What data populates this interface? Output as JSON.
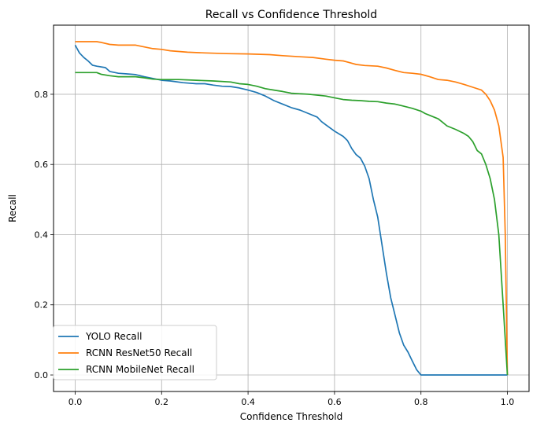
{
  "chart_data": {
    "type": "line",
    "title": "Recall vs Confidence Threshold",
    "xlabel": "Confidence Threshold",
    "ylabel": "Recall",
    "xlim": [
      -0.05,
      1.05
    ],
    "ylim": [
      -0.047,
      0.997
    ],
    "xticks": [
      0.0,
      0.2,
      0.4,
      0.6,
      0.8,
      1.0
    ],
    "xtick_labels": [
      "0.0",
      "0.2",
      "0.4",
      "0.6",
      "0.8",
      "1.0"
    ],
    "yticks": [
      0.0,
      0.2,
      0.4,
      0.6,
      0.8
    ],
    "ytick_labels": [
      "0.0",
      "0.2",
      "0.4",
      "0.6",
      "0.8"
    ],
    "grid": true,
    "legend_position": "lower-left",
    "series": [
      {
        "name": "YOLO Recall",
        "color": "#1f77b4",
        "points": [
          [
            0.0,
            0.94
          ],
          [
            0.01,
            0.918
          ],
          [
            0.02,
            0.905
          ],
          [
            0.03,
            0.895
          ],
          [
            0.04,
            0.883
          ],
          [
            0.05,
            0.88
          ],
          [
            0.07,
            0.876
          ],
          [
            0.08,
            0.865
          ],
          [
            0.1,
            0.86
          ],
          [
            0.12,
            0.858
          ],
          [
            0.14,
            0.856
          ],
          [
            0.16,
            0.85
          ],
          [
            0.18,
            0.845
          ],
          [
            0.2,
            0.84
          ],
          [
            0.22,
            0.838
          ],
          [
            0.25,
            0.833
          ],
          [
            0.28,
            0.83
          ],
          [
            0.3,
            0.83
          ],
          [
            0.32,
            0.826
          ],
          [
            0.34,
            0.823
          ],
          [
            0.36,
            0.822
          ],
          [
            0.38,
            0.818
          ],
          [
            0.4,
            0.812
          ],
          [
            0.42,
            0.805
          ],
          [
            0.44,
            0.795
          ],
          [
            0.46,
            0.782
          ],
          [
            0.48,
            0.772
          ],
          [
            0.5,
            0.762
          ],
          [
            0.52,
            0.755
          ],
          [
            0.54,
            0.745
          ],
          [
            0.56,
            0.735
          ],
          [
            0.57,
            0.722
          ],
          [
            0.58,
            0.713
          ],
          [
            0.6,
            0.695
          ],
          [
            0.62,
            0.68
          ],
          [
            0.63,
            0.668
          ],
          [
            0.64,
            0.645
          ],
          [
            0.65,
            0.628
          ],
          [
            0.66,
            0.618
          ],
          [
            0.67,
            0.595
          ],
          [
            0.68,
            0.56
          ],
          [
            0.69,
            0.5
          ],
          [
            0.7,
            0.45
          ],
          [
            0.71,
            0.37
          ],
          [
            0.72,
            0.29
          ],
          [
            0.73,
            0.22
          ],
          [
            0.74,
            0.17
          ],
          [
            0.75,
            0.12
          ],
          [
            0.76,
            0.085
          ],
          [
            0.77,
            0.065
          ],
          [
            0.78,
            0.04
          ],
          [
            0.79,
            0.015
          ],
          [
            0.8,
            0.0
          ],
          [
            0.85,
            0.0
          ],
          [
            0.9,
            0.0
          ],
          [
            0.95,
            0.0
          ],
          [
            1.0,
            0.0
          ]
        ]
      },
      {
        "name": "RCNN ResNet50 Recall",
        "color": "#ff7f0e",
        "points": [
          [
            0.0,
            0.95
          ],
          [
            0.05,
            0.95
          ],
          [
            0.06,
            0.948
          ],
          [
            0.08,
            0.942
          ],
          [
            0.1,
            0.94
          ],
          [
            0.14,
            0.94
          ],
          [
            0.18,
            0.93
          ],
          [
            0.2,
            0.928
          ],
          [
            0.22,
            0.924
          ],
          [
            0.26,
            0.92
          ],
          [
            0.3,
            0.918
          ],
          [
            0.35,
            0.916
          ],
          [
            0.4,
            0.915
          ],
          [
            0.45,
            0.913
          ],
          [
            0.48,
            0.91
          ],
          [
            0.52,
            0.907
          ],
          [
            0.55,
            0.905
          ],
          [
            0.58,
            0.9
          ],
          [
            0.6,
            0.897
          ],
          [
            0.62,
            0.895
          ],
          [
            0.63,
            0.892
          ],
          [
            0.65,
            0.885
          ],
          [
            0.67,
            0.882
          ],
          [
            0.7,
            0.88
          ],
          [
            0.72,
            0.875
          ],
          [
            0.74,
            0.868
          ],
          [
            0.76,
            0.862
          ],
          [
            0.78,
            0.86
          ],
          [
            0.8,
            0.857
          ],
          [
            0.82,
            0.85
          ],
          [
            0.84,
            0.842
          ],
          [
            0.86,
            0.84
          ],
          [
            0.88,
            0.835
          ],
          [
            0.9,
            0.828
          ],
          [
            0.92,
            0.82
          ],
          [
            0.94,
            0.812
          ],
          [
            0.95,
            0.8
          ],
          [
            0.96,
            0.782
          ],
          [
            0.97,
            0.755
          ],
          [
            0.98,
            0.71
          ],
          [
            0.99,
            0.62
          ],
          [
            0.995,
            0.4
          ],
          [
            1.0,
            0.0
          ]
        ]
      },
      {
        "name": "RCNN MobileNet Recall",
        "color": "#2ca02c",
        "points": [
          [
            0.0,
            0.862
          ],
          [
            0.05,
            0.862
          ],
          [
            0.06,
            0.857
          ],
          [
            0.08,
            0.853
          ],
          [
            0.1,
            0.85
          ],
          [
            0.14,
            0.85
          ],
          [
            0.16,
            0.847
          ],
          [
            0.18,
            0.843
          ],
          [
            0.2,
            0.842
          ],
          [
            0.24,
            0.842
          ],
          [
            0.28,
            0.84
          ],
          [
            0.32,
            0.838
          ],
          [
            0.36,
            0.835
          ],
          [
            0.38,
            0.83
          ],
          [
            0.4,
            0.828
          ],
          [
            0.42,
            0.823
          ],
          [
            0.44,
            0.816
          ],
          [
            0.46,
            0.812
          ],
          [
            0.48,
            0.808
          ],
          [
            0.5,
            0.803
          ],
          [
            0.54,
            0.8
          ],
          [
            0.58,
            0.795
          ],
          [
            0.6,
            0.79
          ],
          [
            0.62,
            0.785
          ],
          [
            0.64,
            0.783
          ],
          [
            0.66,
            0.782
          ],
          [
            0.68,
            0.78
          ],
          [
            0.7,
            0.779
          ],
          [
            0.72,
            0.775
          ],
          [
            0.74,
            0.772
          ],
          [
            0.76,
            0.766
          ],
          [
            0.78,
            0.76
          ],
          [
            0.8,
            0.752
          ],
          [
            0.81,
            0.745
          ],
          [
            0.82,
            0.74
          ],
          [
            0.84,
            0.73
          ],
          [
            0.85,
            0.72
          ],
          [
            0.86,
            0.71
          ],
          [
            0.88,
            0.7
          ],
          [
            0.9,
            0.688
          ],
          [
            0.91,
            0.68
          ],
          [
            0.92,
            0.665
          ],
          [
            0.93,
            0.64
          ],
          [
            0.94,
            0.63
          ],
          [
            0.95,
            0.6
          ],
          [
            0.96,
            0.56
          ],
          [
            0.97,
            0.5
          ],
          [
            0.98,
            0.4
          ],
          [
            0.99,
            0.2
          ],
          [
            1.0,
            0.0
          ]
        ]
      }
    ]
  }
}
